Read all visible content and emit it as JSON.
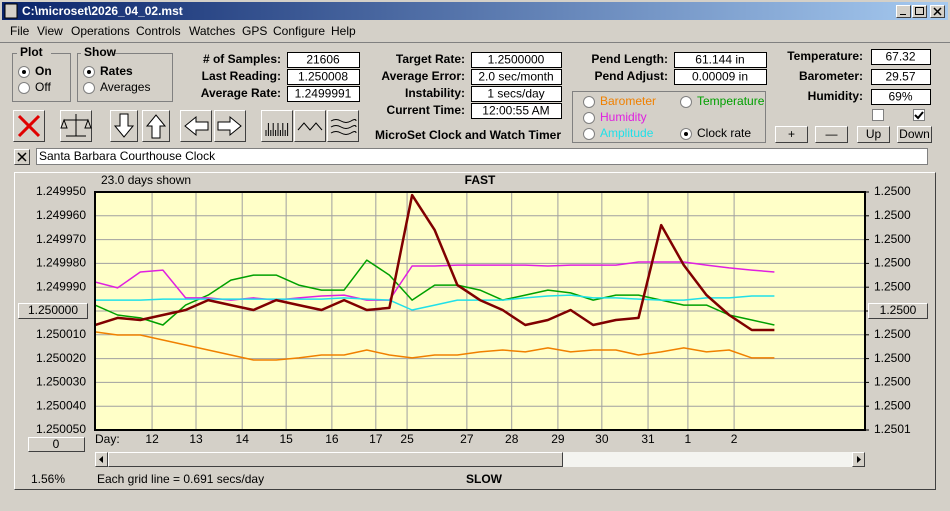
{
  "window": {
    "title": "C:\\microset\\2026_04_02.mst"
  },
  "menu": [
    "File",
    "View",
    "Operations",
    "Controls",
    "Watches",
    "GPS",
    "Configure",
    "Help"
  ],
  "plot_group": {
    "title": "Plot",
    "options": [
      "On",
      "Off"
    ],
    "selected": 0
  },
  "show_group": {
    "title": "Show",
    "options": [
      "Rates",
      "Averages"
    ],
    "selected": 0
  },
  "fields_1": [
    {
      "label": "# of Samples:",
      "value": "21606"
    },
    {
      "label": "Last Reading:",
      "value": "1.250008"
    },
    {
      "label": "Average Rate:",
      "value": "1.2499991"
    }
  ],
  "fields_2": [
    {
      "label": "Target Rate:",
      "value": "1.2500000"
    },
    {
      "label": "Average Error:",
      "value": "2.0 sec/month"
    },
    {
      "label": "Instability:",
      "value": "1 secs/day"
    },
    {
      "label": "Current Time:",
      "value": "12:00:55 AM"
    }
  ],
  "app_title": "MicroSet Clock and Watch Timer",
  "fields_3": [
    {
      "label": "Pend Length:",
      "value": "61.144 in"
    },
    {
      "label": "Pend Adjust:",
      "value": "0.00009 in"
    }
  ],
  "fields_4": [
    {
      "label": "Temperature:",
      "value": "67.32"
    },
    {
      "label": "Barometer:",
      "value": "29.57"
    },
    {
      "label": "Humidity:",
      "value": "69%"
    }
  ],
  "checkboxes": [
    false,
    true
  ],
  "adjust_buttons": [
    "+",
    "—",
    "Up",
    "Down"
  ],
  "clock_name": "Santa Barbara Courthouse Clock",
  "chart_data": {
    "type": "line",
    "title": "FAST",
    "bottom_label": "SLOW",
    "days_shown": "23.0 days shown",
    "x_label": "Day:",
    "grid_note": "Each grid line = 0.691 secs/day",
    "scroll_percent": "1.56%",
    "zero_button": "0",
    "grid": true,
    "selected_series": 4,
    "xlim": [
      0,
      17
    ],
    "xticks": [
      {
        "value": 1.26,
        "label": "12"
      },
      {
        "value": 2.23,
        "label": "13"
      },
      {
        "value": 3.25,
        "label": "14"
      },
      {
        "value": 4.22,
        "label": "15"
      },
      {
        "value": 5.23,
        "label": "16"
      },
      {
        "value": 6.2,
        "label": "17"
      },
      {
        "value": 6.89,
        "label": "25"
      },
      {
        "value": 8.21,
        "label": "27"
      },
      {
        "value": 9.2,
        "label": "28"
      },
      {
        "value": 10.22,
        "label": "29"
      },
      {
        "value": 11.19,
        "label": "30"
      },
      {
        "value": 12.21,
        "label": "31"
      },
      {
        "value": 13.09,
        "label": "1"
      },
      {
        "value": 14.11,
        "label": "2"
      }
    ],
    "ylim": [
      1.25005,
      1.24995
    ],
    "yticks": [
      {
        "value": 1.24995,
        "label": "1.249950"
      },
      {
        "value": 1.24996,
        "label": "1.249960"
      },
      {
        "value": 1.24997,
        "label": "1.249970"
      },
      {
        "value": 1.24998,
        "label": "1.249980"
      },
      {
        "value": 1.24999,
        "label": "1.249990"
      },
      {
        "value": 1.25,
        "label": "1.250000"
      },
      {
        "value": 1.25001,
        "label": "1.250010"
      },
      {
        "value": 1.25002,
        "label": "1.250020"
      },
      {
        "value": 1.25003,
        "label": "1.250030"
      },
      {
        "value": 1.25004,
        "label": "1.250040"
      },
      {
        "value": 1.25005,
        "label": "1.250050"
      }
    ],
    "y2lim": [
      1.25005,
      1.24995
    ],
    "y2ticks": [
      {
        "value": 1.24995,
        "label": "1.2500"
      },
      {
        "value": 1.24996,
        "label": "1.2500"
      },
      {
        "value": 1.24997,
        "label": "1.2500"
      },
      {
        "value": 1.24998,
        "label": "1.2500"
      },
      {
        "value": 1.24999,
        "label": "1.2500"
      },
      {
        "value": 1.25,
        "label": "1.2500"
      },
      {
        "value": 1.25001,
        "label": "1.2500"
      },
      {
        "value": 1.25002,
        "label": "1.2500"
      },
      {
        "value": 1.25003,
        "label": "1.2500"
      },
      {
        "value": 1.25004,
        "label": "1.2500"
      },
      {
        "value": 1.25005,
        "label": "1.2501"
      }
    ],
    "x": [
      0,
      0.5,
      1,
      1.5,
      2,
      2.5,
      3,
      3.5,
      4,
      4.5,
      5,
      5.5,
      6,
      6.5,
      7,
      7.5,
      8,
      8.5,
      9,
      9.5,
      10,
      10.5,
      11,
      11.5,
      12,
      12.5,
      13,
      13.5,
      14,
      14.5,
      15
    ],
    "series": [
      {
        "name": "Barometer",
        "color": "#f08000",
        "values": [
          1.2500088,
          1.2500101,
          1.2500101,
          1.2500122,
          1.2500143,
          1.2500164,
          1.2500185,
          1.2500206,
          1.2500206,
          1.2500197,
          1.2500185,
          1.2500185,
          1.2500164,
          1.2500185,
          1.2500197,
          1.2500185,
          1.2500185,
          1.2500172,
          1.2500164,
          1.2500172,
          1.2500155,
          1.2500172,
          1.2500164,
          1.2500164,
          1.2500185,
          1.2500172,
          1.2500155,
          1.2500172,
          1.2500164,
          1.2500197,
          1.2500197
        ]
      },
      {
        "name": "Temperature",
        "color": "#00a000",
        "values": [
          1.2499975,
          1.2500017,
          1.2500029,
          1.2500059,
          1.2499975,
          1.2499933,
          1.249987,
          1.2499849,
          1.2499849,
          1.2499891,
          1.2499912,
          1.2499912,
          1.2499786,
          1.2499849,
          1.2499954,
          1.2499891,
          1.2499891,
          1.2499912,
          1.2499954,
          1.2499933,
          1.2499912,
          1.2499924,
          1.2499954,
          1.2499933,
          1.2499933,
          1.2499954,
          1.2499975,
          1.2499975,
          1.2500017,
          1.2500038,
          1.2500059
        ]
      },
      {
        "name": "Humidity",
        "color": "#e020e0",
        "values": [
          1.2499878,
          1.2499903,
          1.2499836,
          1.2499828,
          1.2499945,
          1.2499945,
          1.2499954,
          1.2499945,
          1.2499954,
          1.2499945,
          1.2499937,
          1.2499933,
          1.2499954,
          1.2499954,
          1.2499811,
          1.2499811,
          1.2499807,
          1.2499807,
          1.2499807,
          1.2499807,
          1.2499811,
          1.2499807,
          1.2499807,
          1.2499807,
          1.2499794,
          1.2499794,
          1.2499794,
          1.2499807,
          1.2499819,
          1.2499828,
          1.2499836
        ]
      },
      {
        "name": "Amplitude",
        "color": "#20e0e8",
        "values": [
          1.2499954,
          1.2499954,
          1.2499954,
          1.249995,
          1.249995,
          1.249995,
          1.249995,
          1.249995,
          1.249995,
          1.249995,
          1.249995,
          1.2499945,
          1.249995,
          1.2499954,
          1.2499996,
          1.2499975,
          1.2499954,
          1.2499954,
          1.2499954,
          1.2499945,
          1.2499937,
          1.2499933,
          1.2499945,
          1.2499945,
          1.249995,
          1.2499954,
          1.2499954,
          1.2499945,
          1.2499945,
          1.2499937,
          1.2499937
        ]
      },
      {
        "name": "Clock rate",
        "color": "#800000",
        "values": [
          1.2500059,
          1.2500029,
          1.2500038,
          1.2500017,
          1.2499996,
          1.2499954,
          1.2499975,
          1.2499996,
          1.2499954,
          1.2499975,
          1.2499996,
          1.2499954,
          1.2499996,
          1.2499987,
          1.2499513,
          1.249966,
          1.2499891,
          1.2499954,
          1.2499996,
          1.2500059,
          1.2500038,
          1.2499996,
          1.2500059,
          1.2500038,
          1.2500029,
          1.2499639,
          1.2499807,
          1.2499933,
          1.2500017,
          1.250008,
          1.250008
        ]
      }
    ]
  }
}
